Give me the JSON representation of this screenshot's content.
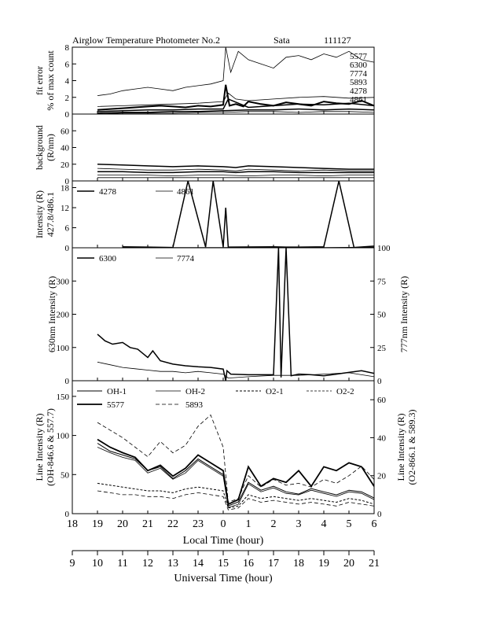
{
  "title": "Airglow Temperature Photometer No.2",
  "station": "Sata",
  "date_code": "111127",
  "chart_data": [
    {
      "type": "line",
      "ylabel": [
        "fit error",
        "% of max count"
      ],
      "ylim": [
        0,
        8
      ],
      "yticks": [
        "0",
        "2",
        "4",
        "6",
        "8"
      ],
      "legend": [
        "5577",
        "6300",
        "7774",
        "5893",
        "4278",
        "4861"
      ],
      "series": [
        {
          "name": "5577",
          "x": [
            19,
            19.5,
            20,
            20.5,
            21,
            21.5,
            22,
            22.5,
            23,
            23.5,
            24,
            24.1,
            24.25,
            24.5,
            24.8,
            25,
            25.5,
            26,
            26.5,
            27,
            27.5,
            28,
            28.5,
            29,
            29.5,
            30
          ],
          "y": [
            0.5,
            0.6,
            0.7,
            0.8,
            0.9,
            1.0,
            0.9,
            0.8,
            1.0,
            0.9,
            1.1,
            3.5,
            1.0,
            1.2,
            0.9,
            1.5,
            1.2,
            1.0,
            1.4,
            1.2,
            1.0,
            1.5,
            1.3,
            1.2,
            1.6,
            1.0
          ],
          "stroke": 2
        },
        {
          "name": "6300",
          "x": [
            19,
            19.5,
            20,
            20.5,
            21,
            21.5,
            22,
            22.5,
            23,
            23.5,
            24,
            24.1,
            24.3,
            24.6,
            25,
            25.5,
            26,
            26.5,
            27,
            27.5,
            28,
            28.5,
            29,
            29.5,
            30
          ],
          "y": [
            2.2,
            2.4,
            2.8,
            3.0,
            3.2,
            3.0,
            2.8,
            3.2,
            3.4,
            3.6,
            4.0,
            8.0,
            5.0,
            7.5,
            6.5,
            6.0,
            5.5,
            6.8,
            7.0,
            6.5,
            7.2,
            6.8,
            7.5,
            6.5,
            6.2
          ],
          "stroke": 0.8
        },
        {
          "name": "7774",
          "x": [
            19,
            20,
            21,
            22,
            23,
            24,
            24.2,
            24.5,
            25,
            26,
            27,
            28,
            29,
            30
          ],
          "y": [
            0.9,
            1.0,
            1.1,
            1.2,
            1.3,
            1.5,
            2.5,
            1.8,
            1.6,
            1.8,
            2.0,
            2.1,
            1.9,
            2.0
          ],
          "stroke": 0.8
        },
        {
          "name": "5893",
          "x": [
            19,
            20,
            21,
            22,
            23,
            24,
            24.2,
            25,
            26,
            27,
            28,
            29,
            30
          ],
          "y": [
            0.3,
            0.4,
            0.5,
            0.5,
            0.6,
            0.6,
            1.8,
            0.8,
            1.0,
            1.2,
            1.1,
            1.3,
            1.0
          ],
          "stroke": 1.5
        },
        {
          "name": "4278",
          "x": [
            19,
            20,
            21,
            22,
            23,
            24,
            25,
            26,
            27,
            28,
            29,
            30
          ],
          "y": [
            0.1,
            0.2,
            0.2,
            0.3,
            0.3,
            0.4,
            0.5,
            0.5,
            0.6,
            0.5,
            0.6,
            0.5
          ],
          "stroke": 1.5
        },
        {
          "name": "4861",
          "x": [
            19,
            20,
            21,
            22,
            23,
            24,
            25,
            26,
            27,
            28,
            29,
            30
          ],
          "y": [
            0.0,
            0.1,
            0.1,
            0.1,
            0.2,
            0.2,
            0.3,
            0.3,
            0.2,
            0.3,
            0.3,
            0.2
          ],
          "stroke": 0.8
        }
      ]
    },
    {
      "type": "line",
      "ylabel": [
        "background",
        "(R/nm)"
      ],
      "ylim": [
        0,
        80
      ],
      "yticks": [
        "0",
        "20",
        "40",
        "60"
      ],
      "series": [
        {
          "name": "5577",
          "x": [
            19,
            20,
            21,
            22,
            23,
            24,
            24.5,
            25,
            26,
            27,
            28,
            29,
            30
          ],
          "y": [
            20,
            19,
            18,
            17,
            18,
            17,
            16,
            18,
            17,
            16,
            15,
            14,
            14
          ],
          "stroke": 1.5
        },
        {
          "name": "6300",
          "x": [
            19,
            20,
            21,
            22,
            23,
            24,
            24.5,
            25,
            26,
            27,
            28,
            29,
            30
          ],
          "y": [
            15,
            14,
            13,
            13,
            14,
            13,
            12,
            14,
            13,
            12,
            13,
            12,
            12
          ],
          "stroke": 0.8
        },
        {
          "name": "7774",
          "x": [
            19,
            20,
            21,
            22,
            23,
            24,
            24.5,
            25,
            26,
            27,
            28,
            29,
            30
          ],
          "y": [
            11,
            11,
            10,
            10,
            11,
            11,
            10,
            11,
            11,
            10,
            10,
            10,
            10
          ],
          "stroke": 1.5
        },
        {
          "name": "5893",
          "x": [
            19,
            20,
            21,
            22,
            23,
            24,
            25,
            26,
            27,
            28,
            29,
            30
          ],
          "y": [
            7,
            7,
            7,
            6,
            7,
            7,
            6,
            7,
            7,
            6,
            7,
            7
          ],
          "stroke": 0.8
        },
        {
          "name": "4278",
          "x": [
            19,
            20,
            21,
            22,
            23,
            24,
            25,
            26,
            27,
            28,
            29,
            30
          ],
          "y": [
            4,
            4,
            4,
            4,
            4,
            4,
            4,
            4,
            4,
            4,
            4,
            4
          ],
          "stroke": 0.8
        }
      ]
    },
    {
      "type": "line",
      "ylabel": [
        "Intensity (R)",
        "427.8/486.1"
      ],
      "ylim": [
        0,
        20
      ],
      "yticks": [
        "0",
        "6",
        "12",
        "18"
      ],
      "legend": [
        "4278",
        "4861"
      ],
      "series": [
        {
          "name": "4278",
          "x": [
            20,
            21,
            22,
            22.6,
            23.3,
            23.6,
            24,
            24.1,
            24.2,
            26,
            26.5,
            27,
            28,
            28.6,
            29.2,
            30
          ],
          "y": [
            0.3,
            0.2,
            0.1,
            20,
            0.2,
            20,
            0.2,
            12,
            0.2,
            0.3,
            0.2,
            0.2,
            0.3,
            20,
            0.1,
            0.5
          ],
          "stroke": 1.5
        },
        {
          "name": "4861",
          "x": [
            20,
            22,
            24,
            26,
            28,
            30
          ],
          "y": [
            0.1,
            0.1,
            0.1,
            0.2,
            0.1,
            0.2
          ],
          "stroke": 0.8
        }
      ]
    },
    {
      "type": "line",
      "ylabel": "630nm Intensity (R)",
      "ylabel_right": "777nm Intensity (R)",
      "ylim": [
        0,
        400
      ],
      "ylim_right": [
        0,
        100
      ],
      "yticks": [
        "0",
        "100",
        "200",
        "300"
      ],
      "yticks_right": [
        "0",
        "25",
        "50",
        "75",
        "100"
      ],
      "legend": [
        "6300",
        "7774"
      ],
      "series": [
        {
          "name": "6300",
          "x": [
            19,
            19.3,
            19.6,
            20,
            20.3,
            20.6,
            21,
            21.2,
            21.5,
            22,
            22.5,
            23,
            23.5,
            24,
            24.1,
            24.15,
            24.3,
            25,
            26,
            26.2,
            26.3,
            26.5,
            26.7,
            27,
            27.5,
            28,
            28.5,
            29,
            29.5,
            30
          ],
          "y": [
            140,
            120,
            110,
            115,
            100,
            95,
            70,
            90,
            60,
            50,
            45,
            42,
            40,
            35,
            0,
            30,
            20,
            18,
            18,
            400,
            10,
            400,
            15,
            20,
            18,
            15,
            20,
            25,
            30,
            22
          ],
          "stroke": 1.5
        },
        {
          "name": "7774",
          "x": [
            19,
            19.5,
            20,
            20.5,
            21,
            21.5,
            22,
            22.5,
            23,
            23.5,
            24,
            24.2,
            25,
            26,
            27,
            28,
            29,
            30
          ],
          "y": [
            14,
            12,
            10,
            9,
            8,
            7,
            7,
            6,
            7,
            6,
            5,
            2,
            3,
            4,
            4,
            5,
            6,
            3
          ],
          "stroke": 0.8
        }
      ]
    },
    {
      "type": "line",
      "ylabel": [
        "Line Intensity (R)",
        "(OH-846.6 & 557.7)"
      ],
      "ylabel_right": [
        "Line Intensity (R)",
        "(O2-866.1 & 589.3)"
      ],
      "ylim": [
        0,
        170
      ],
      "ylim_right": [
        0,
        70
      ],
      "yticks": [
        "0",
        "50",
        "100",
        "150"
      ],
      "yticks_right": [
        "0",
        "20",
        "40",
        "60"
      ],
      "legend": [
        "OH-1",
        "OH-2",
        "O2-1",
        "O2-2",
        "5577",
        "5893"
      ],
      "series": [
        {
          "name": "OH-1",
          "x": [
            19,
            19.5,
            20,
            20.5,
            21,
            21.5,
            22,
            22.5,
            23,
            23.5,
            24,
            24.2,
            24.6,
            25,
            25.5,
            26,
            26.5,
            27,
            27.5,
            28,
            28.5,
            29,
            29.5,
            30
          ],
          "y": [
            90,
            80,
            75,
            70,
            55,
            60,
            45,
            55,
            70,
            60,
            50,
            10,
            15,
            40,
            30,
            35,
            28,
            25,
            32,
            28,
            24,
            30,
            28,
            20
          ],
          "stroke": 1.0
        },
        {
          "name": "OH-2",
          "x": [
            19,
            19.5,
            20,
            20.5,
            21,
            21.5,
            22,
            22.5,
            23,
            23.5,
            24,
            24.2,
            24.6,
            25,
            25.5,
            26,
            26.5,
            27,
            27.5,
            28,
            28.5,
            29,
            29.5,
            30
          ],
          "y": [
            85,
            78,
            72,
            68,
            52,
            58,
            44,
            52,
            68,
            58,
            48,
            8,
            12,
            38,
            28,
            33,
            26,
            24,
            30,
            26,
            22,
            28,
            26,
            18
          ],
          "stroke": 0.8
        },
        {
          "name": "O2-1",
          "x": [
            19,
            19.5,
            20,
            20.5,
            21,
            21.5,
            22,
            22.5,
            23,
            23.5,
            24,
            24.2,
            24.6,
            25,
            25.5,
            26,
            26.5,
            27,
            27.5,
            28,
            28.5,
            29,
            29.5,
            30
          ],
          "y": [
            16,
            15,
            14,
            13,
            12,
            12,
            11,
            13,
            14,
            13,
            12,
            3,
            4,
            10,
            8,
            9,
            8,
            7,
            8,
            7,
            6,
            8,
            7,
            5
          ],
          "stroke": 1.0,
          "dash": true
        },
        {
          "name": "O2-2",
          "x": [
            19,
            19.5,
            20,
            20.5,
            21,
            21.5,
            22,
            22.5,
            23,
            23.5,
            24,
            24.2,
            24.6,
            25,
            25.5,
            26,
            26.5,
            27,
            27.5,
            28,
            28.5,
            29,
            29.5,
            30
          ],
          "y": [
            12,
            11,
            10,
            10,
            9,
            9,
            8,
            10,
            11,
            10,
            9,
            2,
            3,
            8,
            6,
            7,
            6,
            5,
            6,
            5,
            4,
            6,
            5,
            4
          ],
          "stroke": 0.8,
          "dash": true
        },
        {
          "name": "5577",
          "x": [
            19,
            19.5,
            20,
            20.5,
            21,
            21.5,
            22,
            22.5,
            23,
            23.5,
            24,
            24.2,
            24.6,
            25,
            25.5,
            26,
            26.5,
            27,
            27.5,
            28,
            28.5,
            29,
            29.5,
            30
          ],
          "y": [
            95,
            85,
            78,
            72,
            55,
            62,
            48,
            58,
            75,
            65,
            55,
            12,
            18,
            60,
            35,
            45,
            40,
            55,
            35,
            60,
            55,
            65,
            60,
            35
          ],
          "stroke": 1.8
        },
        {
          "name": "5893",
          "x": [
            19,
            19.5,
            20,
            20.5,
            21,
            21.5,
            22,
            22.5,
            23,
            23.5,
            24,
            24.2,
            24.6,
            25,
            25.5,
            26,
            26.5,
            27,
            27.5,
            28,
            28.5,
            29,
            29.5,
            30
          ],
          "y": [
            48,
            44,
            40,
            35,
            30,
            38,
            32,
            36,
            46,
            52,
            35,
            6,
            8,
            20,
            14,
            18,
            15,
            16,
            14,
            18,
            16,
            20,
            25,
            18
          ],
          "stroke": 0.8,
          "dash": true
        }
      ]
    }
  ],
  "x_axis_local": {
    "label": "Local Time (hour)",
    "ticks": [
      "18",
      "19",
      "20",
      "21",
      "22",
      "23",
      "0",
      "1",
      "2",
      "3",
      "4",
      "5",
      "6"
    ]
  },
  "x_axis_ut": {
    "label": "Universal Time (hour)",
    "ticks": [
      "9",
      "10",
      "11",
      "12",
      "13",
      "14",
      "15",
      "16",
      "17",
      "18",
      "19",
      "20",
      "21"
    ]
  }
}
